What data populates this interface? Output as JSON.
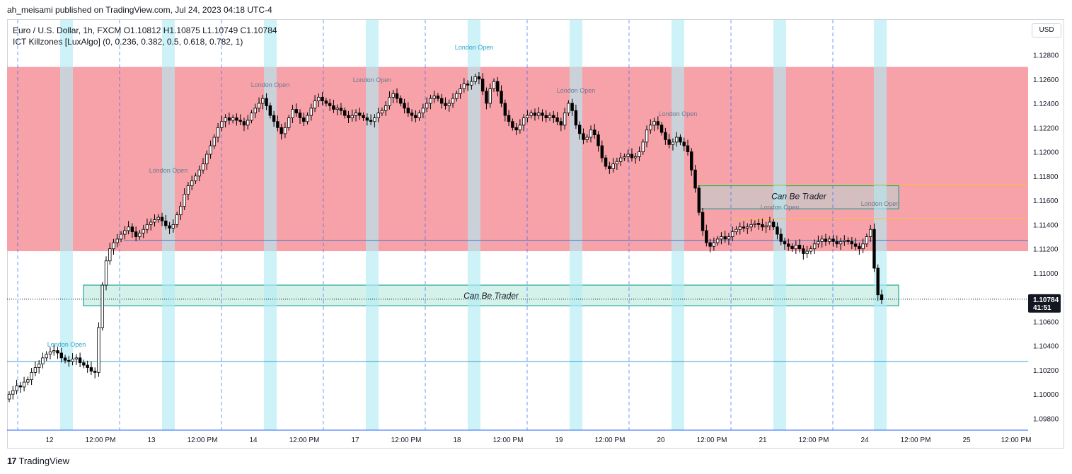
{
  "publisher_line": "ah_meisami published on TradingView.com, Jul 24, 2023 04:18 UTC-4",
  "legend": {
    "symbol_line": "Euro / U.S. Dollar, 1h, FXCM  O1.10812  H1.10875  L1.10749  C1.10784",
    "indicator_line": "ICT Killzones [LuxAlgo] (0, 0.236, 0.382, 0.5, 0.618, 0.782, 1)"
  },
  "currency_button": "USD",
  "brand": "TradingView",
  "colors": {
    "up": "#ffffff",
    "down": "#000000",
    "killzone": "#b2ebf2",
    "premium_zone": "#f7a1a8",
    "line_blue": "#2962ff",
    "grid_dash": "#2962ff",
    "accent_teal": "#26a69a"
  },
  "chart_data": {
    "type": "candlestick",
    "symbol": "Euro / U.S. Dollar",
    "timeframe": "1h",
    "last_price": "1.10784",
    "countdown": "41:51",
    "ylim": [
      1.0972,
      1.13
    ],
    "y_ticks": [
      "1.12800",
      "1.12600",
      "1.12400",
      "1.12200",
      "1.12000",
      "1.11800",
      "1.11600",
      "1.11400",
      "1.11200",
      "1.11000",
      "1.10800",
      "1.10600",
      "1.10400",
      "1.10200",
      "1.10000",
      "1.09800"
    ],
    "x_ticks": [
      "12",
      "12:00 PM",
      "13",
      "12:00 PM",
      "14",
      "12:00 PM",
      "17",
      "12:00 PM",
      "18",
      "12:00 PM",
      "19",
      "12:00 PM",
      "20",
      "12:00 PM",
      "21",
      "12:00 PM",
      "24",
      "12:00 PM",
      "25",
      "12:00 PM"
    ],
    "killzone_label": "London Open",
    "zones": [
      {
        "label": "",
        "type": "premium",
        "top": 1.127,
        "bottom": 1.1118,
        "color": "#f7a1a8"
      },
      {
        "label": "Can Be Trader",
        "type": "box",
        "top": 1.1172,
        "bottom": 1.1153,
        "color": "#b0b0b0"
      },
      {
        "label": "Can Be Trader",
        "type": "box",
        "top": 1.109,
        "bottom": 1.1073,
        "color": "#a5e0d3"
      }
    ],
    "levels": [
      1.1127,
      1.1027,
      1.1145,
      1.1173,
      1.0972
    ],
    "series": [
      {
        "name": "EURUSD",
        "close": [
          1.1,
          1.1003,
          1.1007,
          1.1006,
          1.101,
          1.1012,
          1.1018,
          1.1022,
          1.1025,
          1.103,
          1.1033,
          1.1035,
          1.1036,
          1.1034,
          1.103,
          1.1028,
          1.1027,
          1.1029,
          1.103,
          1.1026,
          1.1024,
          1.1022,
          1.1019,
          1.1018,
          1.1055,
          1.109,
          1.111,
          1.112,
          1.1125,
          1.1128,
          1.1132,
          1.1135,
          1.1138,
          1.1134,
          1.113,
          1.1133,
          1.1136,
          1.114,
          1.1142,
          1.1144,
          1.1146,
          1.1143,
          1.1139,
          1.1137,
          1.114,
          1.1148,
          1.1155,
          1.1165,
          1.1172,
          1.1176,
          1.118,
          1.1185,
          1.119,
          1.1198,
          1.1205,
          1.1212,
          1.122,
          1.1225,
          1.1228,
          1.1226,
          1.1228,
          1.1226,
          1.1225,
          1.1222,
          1.1226,
          1.1232,
          1.1236,
          1.124,
          1.1244,
          1.1238,
          1.123,
          1.1225,
          1.122,
          1.1215,
          1.122,
          1.1228,
          1.1235,
          1.1232,
          1.1228,
          1.1225,
          1.123,
          1.1236,
          1.1242,
          1.1245,
          1.1242,
          1.124,
          1.1238,
          1.1235,
          1.1236,
          1.1234,
          1.123,
          1.1228,
          1.123,
          1.1232,
          1.123,
          1.1228,
          1.1226,
          1.1225,
          1.1228,
          1.1232,
          1.1234,
          1.1238,
          1.1245,
          1.1248,
          1.1244,
          1.124,
          1.1236,
          1.1232,
          1.123,
          1.1228,
          1.1232,
          1.1236,
          1.124,
          1.1244,
          1.1246,
          1.1244,
          1.124,
          1.1238,
          1.124,
          1.1244,
          1.1248,
          1.1252,
          1.1256,
          1.1255,
          1.1258,
          1.1262,
          1.126,
          1.125,
          1.124,
          1.1252,
          1.1258,
          1.125,
          1.124,
          1.123,
          1.1225,
          1.122,
          1.1218,
          1.1222,
          1.1228,
          1.123,
          1.1232,
          1.123,
          1.1232,
          1.123,
          1.1228,
          1.123,
          1.1228,
          1.1225,
          1.1222,
          1.1232,
          1.124,
          1.1234,
          1.1222,
          1.1215,
          1.121,
          1.1212,
          1.1218,
          1.1214,
          1.1205,
          1.1195,
          1.1188,
          1.1186,
          1.119,
          1.1192,
          1.1195,
          1.1196,
          1.1198,
          1.1195,
          1.1196,
          1.12,
          1.1208,
          1.1218,
          1.1222,
          1.1225,
          1.1222,
          1.1216,
          1.121,
          1.1206,
          1.1208,
          1.1212,
          1.1208,
          1.1205,
          1.12,
          1.1185,
          1.117,
          1.115,
          1.1135,
          1.1125,
          1.1122,
          1.1125,
          1.1128,
          1.113,
          1.1128,
          1.113,
          1.1134,
          1.1136,
          1.1138,
          1.1137,
          1.1138,
          1.114,
          1.1141,
          1.114,
          1.1138,
          1.1139,
          1.1142,
          1.1138,
          1.1132,
          1.1126,
          1.1124,
          1.1122,
          1.112,
          1.1123,
          1.112,
          1.1116,
          1.1118,
          1.112,
          1.1124,
          1.1126,
          1.1128,
          1.1126,
          1.1128,
          1.1126,
          1.1124,
          1.1126,
          1.1127,
          1.1126,
          1.1124,
          1.1122,
          1.112,
          1.1124,
          1.113,
          1.1136,
          1.1104,
          1.1082,
          1.1078
        ]
      }
    ]
  }
}
